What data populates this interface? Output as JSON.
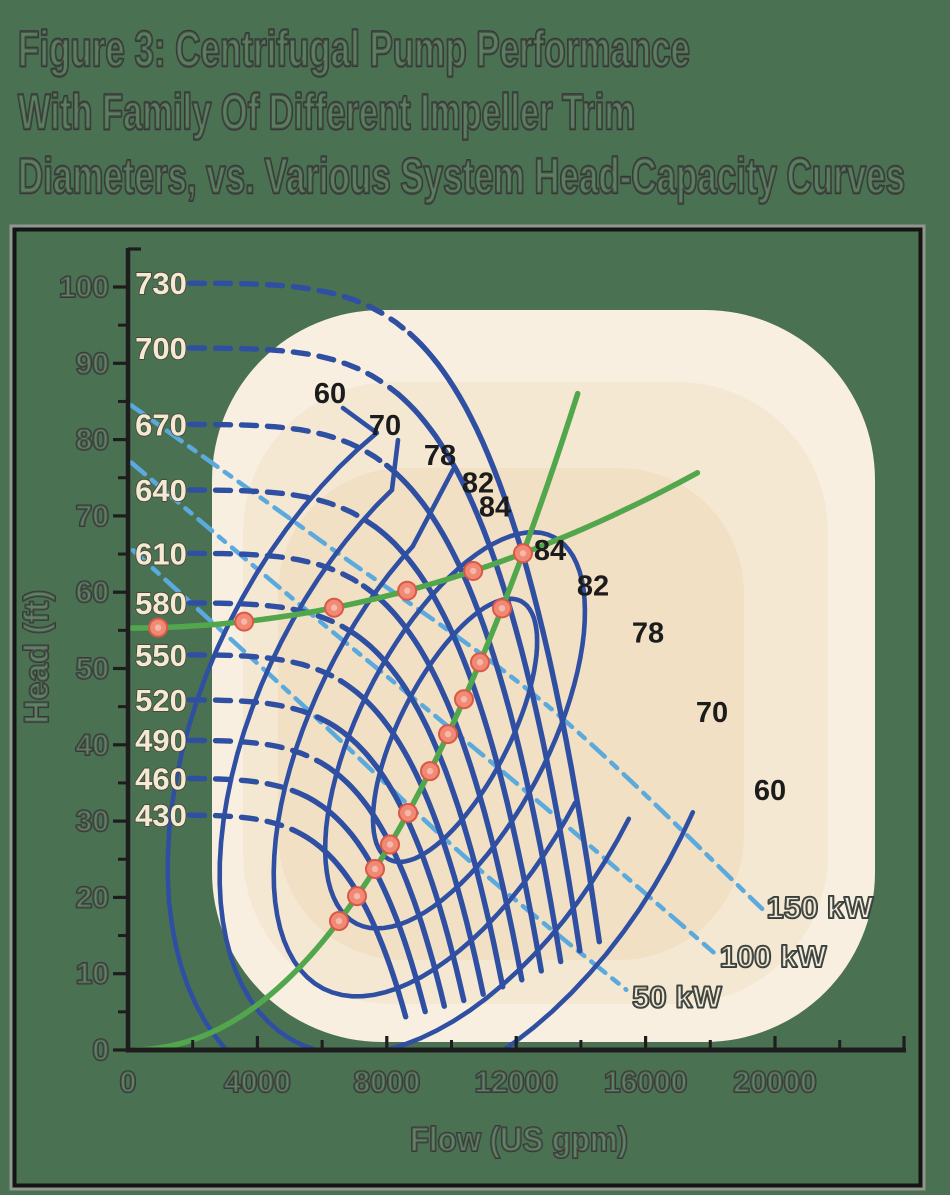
{
  "figure": {
    "title_lines": [
      "Figure 3: Centrifugal Pump Performance",
      "With Family Of Different Impeller Trim",
      "Diameters, vs. Various System Head-Capacity Curves"
    ]
  },
  "axes": {
    "x": {
      "title": "Flow (US gpm)",
      "tick_labels": [
        "0",
        "4000",
        "8000",
        "12000",
        "16000",
        "20000"
      ],
      "tick_values": [
        0,
        4000,
        8000,
        12000,
        16000,
        20000
      ],
      "minor_tick_values": [
        2000,
        6000,
        10000,
        14000,
        18000,
        22000
      ],
      "max_value": 24000
    },
    "y": {
      "title": "Head (ft)",
      "tick_labels": [
        "0",
        "10",
        "20",
        "30",
        "40",
        "50",
        "60",
        "70",
        "80",
        "90",
        "100"
      ],
      "tick_values": [
        0,
        10,
        20,
        30,
        40,
        50,
        60,
        70,
        80,
        90,
        100
      ],
      "minor_step": 5,
      "max_value": 105
    }
  },
  "colors": {
    "background": "#4a7252",
    "frame_outer": "#91968f",
    "frame_inner": "#141414",
    "axis": "#1d1d1d",
    "pump_curve_blue": "#2f4fa2",
    "power_curve_blue": "#5baade",
    "system_curve_green": "#52a74c",
    "operating_dot_fill": "#f08a76",
    "operating_dot_ring": "#da5846",
    "operating_dot_core": "#f8b8a8",
    "blob_outer": "#f8efe0",
    "blob_mid": "#f5e8d3",
    "blob_inner": "#f2e0c5",
    "trim_label_fill": "#f5e9d1",
    "outline_text": "#363b36",
    "efficiency_label": "#1c1c1c"
  },
  "chart_data": {
    "type": "line",
    "title": "Figure 3: Centrifugal Pump Performance With Family Of Different Impeller Trim Diameters, vs. Various System Head-Capacity Curves",
    "xlabel": "Flow (US gpm)",
    "ylabel": "Head (ft)",
    "xlim": [
      0,
      24000
    ],
    "ylim": [
      0,
      105
    ],
    "grid": false,
    "legend": "none",
    "pump_curves": {
      "style": "solid blue, dashed toward left axis where each curve is labeled by impeller trim diameter",
      "start_q": 1900,
      "head_exponent": 5,
      "solid_from_fraction": 0.58,
      "end_fraction": 0.97,
      "series": [
        {
          "trim": "730",
          "shutoff_head": 100.5,
          "q_max": 15020
        },
        {
          "trim": "700",
          "shutoff_head": 92.0,
          "q_max": 14400
        },
        {
          "trim": "670",
          "shutoff_head": 82.0,
          "q_max": 13790
        },
        {
          "trim": "640",
          "shutoff_head": 73.4,
          "q_max": 13170
        },
        {
          "trim": "610",
          "shutoff_head": 65.1,
          "q_max": 12550
        },
        {
          "trim": "580",
          "shutoff_head": 58.6,
          "q_max": 11940
        },
        {
          "trim": "550",
          "shutoff_head": 51.8,
          "q_max": 11320
        },
        {
          "trim": "520",
          "shutoff_head": 45.9,
          "q_max": 10700
        },
        {
          "trim": "490",
          "shutoff_head": 40.6,
          "q_max": 10080
        },
        {
          "trim": "460",
          "shutoff_head": 35.6,
          "q_max": 9470
        },
        {
          "trim": "430",
          "shutoff_head": 30.8,
          "q_max": 8850
        }
      ]
    },
    "efficiency_contours": {
      "center_q": 10110,
      "center_h": 41.9,
      "tilt_deg": 63,
      "rings": [
        {
          "eff": "84",
          "a": 145,
          "b": 55,
          "closed": true
        },
        {
          "eff": "82",
          "a": 217,
          "b": 95,
          "closed": true
        },
        {
          "eff": "78",
          "a": 290,
          "b": 140,
          "closed": false,
          "t0": -60,
          "t1": -270
        },
        {
          "eff": "70",
          "a": 350,
          "b": 195,
          "closed": false,
          "t0": -58,
          "t1": -272
        },
        {
          "eff": "60",
          "a": 400,
          "b": 250,
          "closed": false,
          "t0": -55,
          "t1": -275
        }
      ]
    },
    "efficiency_labels": {
      "top": [
        {
          "eff": "60",
          "q": 6244,
          "h": 86.1
        },
        {
          "eff": "70",
          "q": 7944,
          "h": 81.9
        },
        {
          "eff": "78",
          "q": 9644,
          "h": 78.0
        },
        {
          "eff": "82",
          "q": 10819,
          "h": 74.4
        },
        {
          "eff": "84",
          "q": 11344,
          "h": 71.2
        }
      ],
      "right": [
        {
          "eff": "84",
          "q": 13044,
          "h": 65.5
        },
        {
          "eff": "82",
          "q": 14374,
          "h": 60.9
        },
        {
          "eff": "78",
          "q": 16074,
          "h": 54.7
        },
        {
          "eff": "70",
          "q": 18052,
          "h": 44.3
        },
        {
          "eff": "60",
          "q": 19845,
          "h": 34.1
        }
      ]
    },
    "power_curves": [
      {
        "label": "150 kW",
        "points": [
          [
            100,
            84.5
          ],
          [
            6200,
            66
          ],
          [
            13000,
            45
          ],
          [
            19600,
            18.5
          ]
        ],
        "label_q": 21390,
        "label_h": 18.6
      },
      {
        "label": "100 kW",
        "points": [
          [
            100,
            77.0
          ],
          [
            5700,
            57
          ],
          [
            12000,
            35
          ],
          [
            18100,
            12.8
          ]
        ],
        "label_q": 19940,
        "label_h": 12.2
      },
      {
        "label": "50 kW",
        "points": [
          [
            150,
            65.5
          ],
          [
            5200,
            46
          ],
          [
            10500,
            25
          ],
          [
            15400,
            7.9
          ]
        ],
        "label_q": 16970,
        "label_h": 6.9
      }
    ],
    "system_curves": [
      {
        "name": "mostly-friction system curve",
        "static_head": 0,
        "h_ref": 65.1,
        "q_ref": 12210,
        "exponent": 2.15,
        "q_end": 13900
      },
      {
        "name": "high-static-head system curve",
        "static_head": 55.3,
        "friction_k": 6.57e-08,
        "q_end": 17600
      }
    ],
    "operating_points": {
      "on_friction_curve_q": [
        6522,
        7079,
        7635,
        8099,
        8655,
        9335,
        9892,
        10386,
        10881,
        11561
      ],
      "on_static_curve_q": [
        930,
        3590,
        6370,
        8630,
        10670
      ],
      "bep": {
        "q": 12210,
        "h": 65.1
      }
    }
  }
}
